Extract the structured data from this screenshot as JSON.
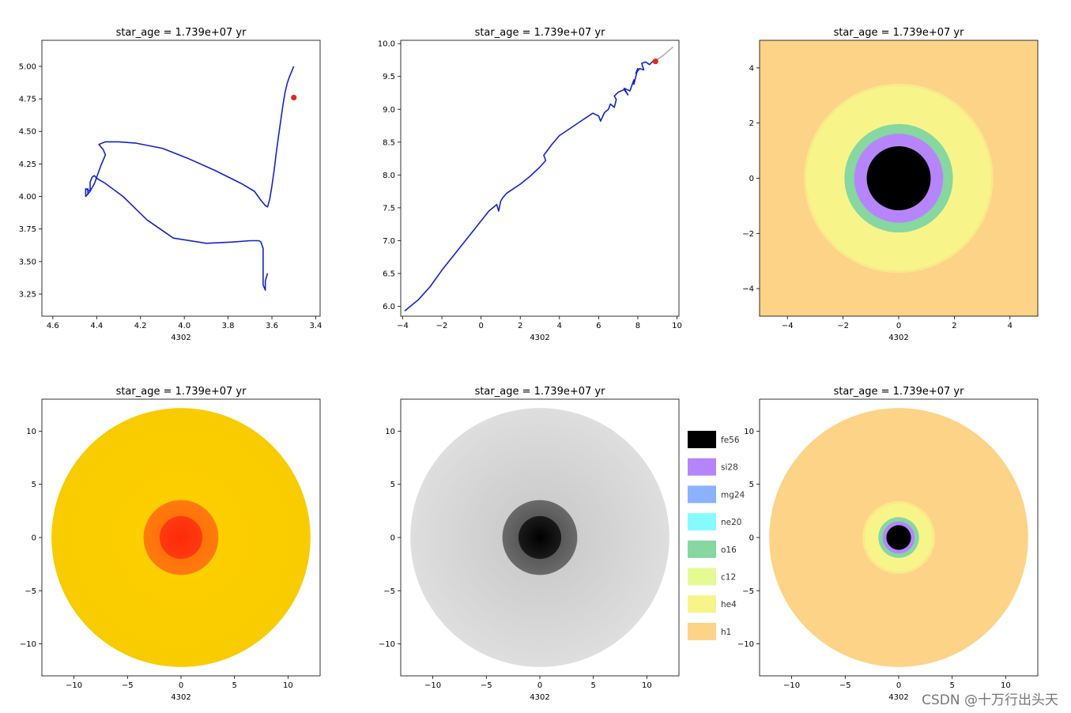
{
  "colors": {
    "track": "#1024c8",
    "marker": "#e02a1a",
    "track_future": "#b0b0b0",
    "h1": "#fdd387",
    "he4": "#f7f58a",
    "c12": "#e4fb94",
    "o16": "#86d7a0",
    "mg24": "#8bb1ff",
    "si28": "#b685fb",
    "fe56": "#000000",
    "ne20": "#86fbff"
  },
  "chart_data": [
    {
      "type": "line",
      "title": "star_age = 1.739e+07 yr",
      "xlabel": "4302",
      "xlim": [
        4.65,
        3.38
      ],
      "ylim": [
        3.08,
        5.2
      ],
      "xticks": [
        "4.6",
        "4.4",
        "4.2",
        "4.0",
        "3.8",
        "3.6",
        "3.4"
      ],
      "yticks": [
        "3.25",
        "3.50",
        "3.75",
        "4.00",
        "4.25",
        "4.50",
        "4.75",
        "5.00"
      ],
      "x": [
        3.62,
        3.63,
        3.63,
        3.64,
        3.64,
        3.64,
        3.65,
        3.66,
        3.7,
        3.78,
        3.9,
        4.05,
        4.17,
        4.28,
        4.36,
        4.4,
        4.41,
        4.42,
        4.43,
        4.43,
        4.44,
        4.44,
        4.44,
        4.45,
        4.45,
        4.44,
        4.43,
        4.41,
        4.38,
        4.36,
        4.37,
        4.39,
        4.36,
        4.3,
        4.22,
        4.1,
        3.98,
        3.86,
        3.74,
        3.68,
        3.65,
        3.63,
        3.62,
        3.61,
        3.6,
        3.59,
        3.58,
        3.57,
        3.56,
        3.55,
        3.54,
        3.53,
        3.52,
        3.51,
        3.5
      ],
      "y": [
        3.41,
        3.35,
        3.28,
        3.32,
        3.45,
        3.6,
        3.65,
        3.66,
        3.66,
        3.65,
        3.64,
        3.68,
        3.82,
        4.0,
        4.1,
        4.14,
        4.16,
        4.15,
        4.11,
        4.04,
        4.02,
        4.06,
        4.02,
        4.0,
        4.06,
        4.05,
        4.04,
        4.1,
        4.24,
        4.32,
        4.36,
        4.4,
        4.42,
        4.42,
        4.41,
        4.37,
        4.29,
        4.2,
        4.1,
        4.04,
        3.97,
        3.93,
        3.92,
        3.98,
        4.08,
        4.2,
        4.34,
        4.46,
        4.58,
        4.7,
        4.8,
        4.87,
        4.92,
        4.96,
        5.0
      ],
      "marker": {
        "x": 3.5,
        "y": 4.76
      }
    },
    {
      "type": "line",
      "title": "star_age = 1.739e+07 yr",
      "xlabel": "4302",
      "xlim": [
        -4.1,
        10.1
      ],
      "ylim": [
        5.85,
        10.05
      ],
      "xticks": [
        "−4",
        "−2",
        "0",
        "2",
        "4",
        "6",
        "8",
        "10"
      ],
      "yticks": [
        "6.0",
        "6.5",
        "7.0",
        "7.5",
        "8.0",
        "8.5",
        "9.0",
        "9.5",
        "10.0"
      ],
      "x": [
        -3.9,
        -3.2,
        -2.6,
        -2.0,
        -1.2,
        -0.4,
        0.4,
        0.8,
        0.9,
        1.0,
        1.1,
        1.3,
        1.6,
        2.0,
        2.5,
        3.0,
        3.3,
        3.2,
        3.6,
        4.0,
        4.6,
        5.2,
        5.5,
        5.7,
        6.0,
        6.1,
        6.3,
        6.5,
        6.6,
        6.8,
        6.9,
        6.8,
        7.0,
        7.3,
        7.5,
        7.3,
        7.6,
        7.8,
        7.8,
        8.0,
        7.9,
        8.1,
        8.3,
        8.2,
        8.4,
        8.6,
        8.8,
        9.0
      ],
      "y": [
        5.93,
        6.1,
        6.3,
        6.55,
        6.85,
        7.15,
        7.45,
        7.55,
        7.45,
        7.6,
        7.65,
        7.72,
        7.78,
        7.86,
        7.98,
        8.12,
        8.22,
        8.3,
        8.46,
        8.6,
        8.72,
        8.84,
        8.9,
        8.94,
        8.9,
        8.82,
        8.95,
        9.0,
        9.08,
        9.03,
        9.15,
        9.2,
        9.26,
        9.3,
        9.22,
        9.32,
        9.28,
        9.45,
        9.38,
        9.62,
        9.55,
        9.62,
        9.6,
        9.7,
        9.72,
        9.68,
        9.74,
        9.76
      ],
      "x_future": [
        8.8,
        9.3,
        9.8
      ],
      "y_future": [
        9.72,
        9.82,
        9.95
      ],
      "marker": {
        "x": 8.9,
        "y": 9.73
      }
    },
    {
      "type": "heatmap",
      "title": "star_age = 1.739e+07 yr",
      "xlabel": "4302",
      "xlim": [
        -5,
        5
      ],
      "ylim": [
        -5,
        5
      ],
      "xticks": [
        "−4",
        "−2",
        "0",
        "2",
        "4"
      ],
      "yticks": [
        "−4",
        "−2",
        "0",
        "2",
        "4"
      ],
      "background": "h1",
      "zones": [
        {
          "species": "he4",
          "radius": 3.4
        },
        {
          "species": "o16",
          "radius": 1.95
        },
        {
          "species": "si28",
          "radius": 1.6
        },
        {
          "species": "fe56",
          "radius": 1.15
        }
      ]
    },
    {
      "type": "heatmap",
      "title": "star_age = 1.739e+07 yr",
      "xlabel": "4302",
      "xlim": [
        -13,
        13
      ],
      "ylim": [
        -13,
        13
      ],
      "xticks": [
        "−10",
        "−5",
        "0",
        "5",
        "10"
      ],
      "yticks": [
        "−10",
        "−5",
        "0",
        "5",
        "10"
      ],
      "rings": [
        {
          "radius": 12.1,
          "inner": "#ffcf00",
          "outer": "#f8cc00"
        },
        {
          "radius": 3.5,
          "inner": "#ff6a00",
          "outer": "#ff7a10"
        },
        {
          "radius": 2.0,
          "inner": "#ff2a08",
          "outer": "#ff3a10"
        }
      ]
    },
    {
      "type": "heatmap",
      "title": "star_age = 1.739e+07 yr",
      "xlabel": "4302",
      "xlim": [
        -13,
        13
      ],
      "ylim": [
        -13,
        13
      ],
      "xticks": [
        "−10",
        "−5",
        "0",
        "5",
        "10"
      ],
      "yticks": [
        "−10",
        "−5",
        "0",
        "5",
        "10"
      ],
      "rings": [
        {
          "radius": 12.1,
          "inner": "#c6c6c6",
          "outer": "#dedede"
        },
        {
          "radius": 3.5,
          "inner": "#444444",
          "outer": "#6a6a6a"
        },
        {
          "radius": 2.0,
          "inner": "#000000",
          "outer": "#1a1a1a"
        }
      ]
    },
    {
      "type": "heatmap",
      "title": "star_age = 1.739e+07 yr",
      "xlabel": "4302",
      "xlim": [
        -13,
        13
      ],
      "ylim": [
        -13,
        13
      ],
      "xticks": [
        "−10",
        "−5",
        "0",
        "5",
        "10"
      ],
      "yticks": [
        "−10",
        "−5",
        "0",
        "5",
        "10"
      ],
      "background": "none",
      "zones": [
        {
          "species": "h1",
          "radius": 12.1
        },
        {
          "species": "he4",
          "radius": 3.4
        },
        {
          "species": "o16",
          "radius": 1.9
        },
        {
          "species": "si28",
          "radius": 1.5
        },
        {
          "species": "fe56",
          "radius": 1.15
        }
      ]
    }
  ],
  "legend": {
    "placement": "between middle-bottom and right-bottom panels",
    "items": [
      {
        "label": "fe56",
        "species": "fe56"
      },
      {
        "label": "si28",
        "species": "si28"
      },
      {
        "label": "mg24",
        "species": "mg24"
      },
      {
        "label": "ne20",
        "species": "ne20"
      },
      {
        "label": "o16",
        "species": "o16"
      },
      {
        "label": "c12",
        "species": "c12"
      },
      {
        "label": "he4",
        "species": "he4"
      },
      {
        "label": "h1",
        "species": "h1"
      }
    ]
  },
  "watermark": "CSDN @十万行出头天"
}
